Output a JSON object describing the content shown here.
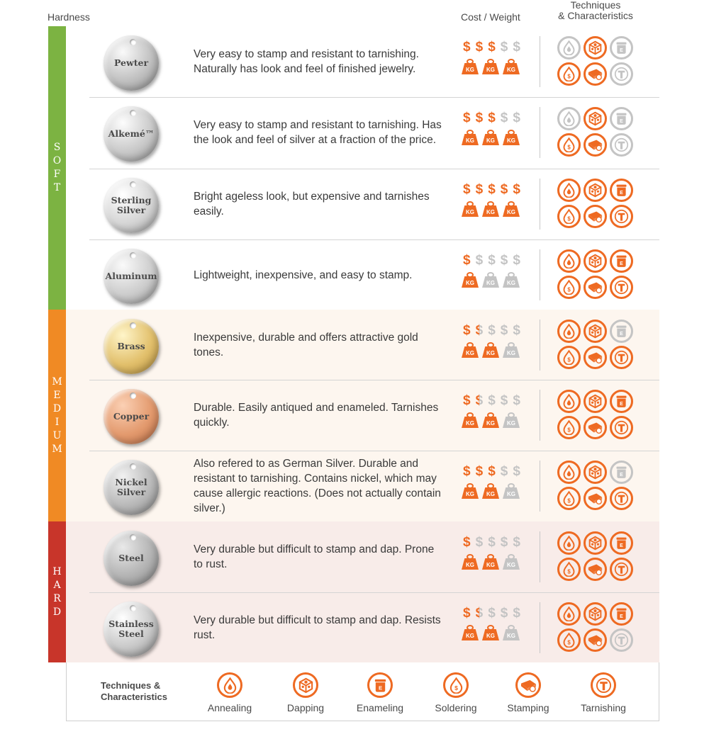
{
  "headers": {
    "hardness": "Hardness",
    "cost_weight": "Cost / Weight",
    "tech_line1": "Techniques",
    "tech_line2": "& Characteristics"
  },
  "colors": {
    "soft": "#7cb342",
    "medium": "#f08a24",
    "hard": "#c8352a",
    "orange": "#ee6a22",
    "gray": "#c4c4c4"
  },
  "bands": [
    {
      "label": "SOFT",
      "color": "#7cb342"
    },
    {
      "label": "MEDIUM",
      "color": "#f08a24"
    },
    {
      "label": "HARD",
      "color": "#c8352a"
    }
  ],
  "metals": [
    {
      "name": "Pewter",
      "description": "Very easy to stamp and resistant to tarnishing. Naturally has look and feel of finished jewelry.",
      "cost": 3,
      "weight": 3,
      "techniques": [
        false,
        true,
        false,
        true,
        true,
        false
      ]
    },
    {
      "name": "Alkemé™",
      "description": "Very easy to stamp and resistant to tarnishing. Has the look and feel of silver at a fraction of the price.",
      "cost": 3,
      "weight": 3,
      "techniques": [
        false,
        true,
        false,
        true,
        true,
        false
      ]
    },
    {
      "name": "Sterling Silver",
      "description": "Bright ageless look, but expensive and tarnishes easily.",
      "cost": 5,
      "weight": 3,
      "techniques": [
        true,
        true,
        true,
        true,
        true,
        true
      ]
    },
    {
      "name": "Aluminum",
      "description": "Lightweight, inexpensive, and easy to stamp.",
      "cost": 1,
      "weight": 1,
      "techniques": [
        true,
        true,
        true,
        true,
        true,
        true
      ]
    },
    {
      "name": "Brass",
      "description": "Inexpensive, durable and offers attractive gold tones.",
      "cost": 1.5,
      "weight": 2,
      "techniques": [
        true,
        true,
        false,
        true,
        true,
        true
      ]
    },
    {
      "name": "Copper",
      "description": "Durable. Easily antiqued and enameled. Tarnishes quickly.",
      "cost": 1.5,
      "weight": 2,
      "techniques": [
        true,
        true,
        true,
        true,
        true,
        true
      ]
    },
    {
      "name": "Nickel Silver",
      "description": "Also refered to as German Silver. Durable and resistant to tarnishing. Contains nickel, which may cause allergic reactions. (Does not actually contain silver.)",
      "cost": 3,
      "weight": 2,
      "techniques": [
        true,
        true,
        false,
        true,
        true,
        true
      ]
    },
    {
      "name": "Steel",
      "description": "Very durable but difficult to stamp and dap. Prone to rust.",
      "cost": 1,
      "weight": 2,
      "techniques": [
        true,
        true,
        true,
        true,
        true,
        true
      ]
    },
    {
      "name": "Stainless Steel",
      "description": "Very durable but difficult to stamp and dap. Resists rust.",
      "cost": 1.5,
      "weight": 2,
      "techniques": [
        true,
        true,
        true,
        true,
        true,
        false
      ]
    }
  ],
  "cost_symbol": "$",
  "weight_label": "KG",
  "legend": {
    "title_line1": "Techniques &",
    "title_line2": "Characteristics",
    "items": [
      {
        "label": "Annealing",
        "icon": "annealing-icon"
      },
      {
        "label": "Dapping",
        "icon": "dapping-icon"
      },
      {
        "label": "Enameling",
        "icon": "enameling-icon"
      },
      {
        "label": "Soldering",
        "icon": "soldering-icon"
      },
      {
        "label": "Stamping",
        "icon": "stamping-icon"
      },
      {
        "label": "Tarnishing",
        "icon": "tarnishing-icon"
      }
    ]
  }
}
